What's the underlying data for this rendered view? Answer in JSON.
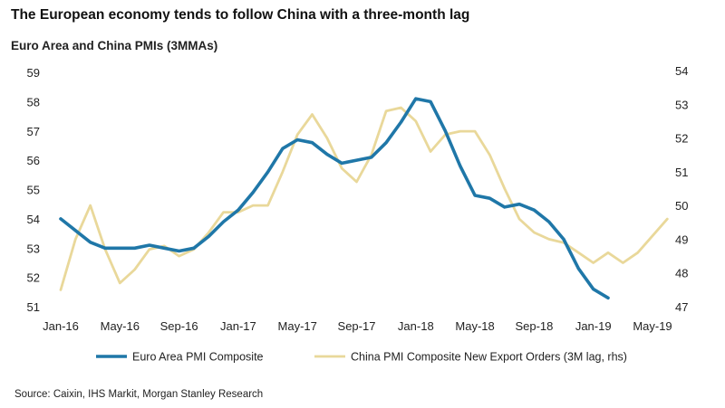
{
  "title": "The European economy tends to follow China with a three-month lag",
  "subtitle": "Euro Area and China PMIs (3MMAs)",
  "source": "Source: Caixin, IHS Markit, Morgan Stanley Research",
  "colors": {
    "euro": "#1f77a8",
    "china": "#e9d89a"
  },
  "chart_data": {
    "type": "line",
    "title": "Euro Area and China PMIs (3MMAs)",
    "x_ticks": [
      "Jan-16",
      "May-16",
      "Sep-16",
      "Jan-17",
      "May-17",
      "Sep-17",
      "Jan-18",
      "May-18",
      "Sep-18",
      "Jan-19",
      "May-19"
    ],
    "y_left": {
      "min": 51,
      "max": 59,
      "ticks": [
        51,
        52,
        53,
        54,
        55,
        56,
        57,
        58,
        59
      ]
    },
    "y_right": {
      "min": 47,
      "max": 54,
      "ticks": [
        47,
        48,
        49,
        50,
        51,
        52,
        53,
        54
      ]
    },
    "grid": false,
    "legend_position": "bottom",
    "series": [
      {
        "name": "Euro Area PMI Composite",
        "axis": "left",
        "color": "#1f77a8",
        "start": "Jan-16",
        "values": [
          54.0,
          53.6,
          53.2,
          53.0,
          53.0,
          53.0,
          53.1,
          53.0,
          52.9,
          53.0,
          53.4,
          53.9,
          54.3,
          54.9,
          55.6,
          56.4,
          56.7,
          56.6,
          56.2,
          55.9,
          56.0,
          56.1,
          56.6,
          57.3,
          58.1,
          58.0,
          57.0,
          55.8,
          54.8,
          54.7,
          54.4,
          54.5,
          54.3,
          53.9,
          53.3,
          52.3,
          51.6,
          51.3
        ]
      },
      {
        "name": "China PMI Composite New Export Orders (3M lag, rhs)",
        "axis": "right",
        "color": "#e9d89a",
        "start": "Jan-16",
        "values": [
          47.5,
          49.0,
          50.0,
          48.7,
          47.7,
          48.1,
          48.7,
          48.8,
          48.5,
          48.7,
          49.2,
          49.8,
          49.8,
          50.0,
          50.0,
          51.0,
          52.1,
          52.7,
          52.0,
          51.1,
          50.7,
          51.5,
          52.8,
          52.9,
          52.5,
          51.6,
          52.1,
          52.2,
          52.2,
          51.5,
          50.5,
          49.6,
          49.2,
          49.0,
          48.9,
          48.6,
          48.3,
          48.6,
          48.3,
          48.6,
          49.1,
          49.6
        ]
      }
    ]
  }
}
